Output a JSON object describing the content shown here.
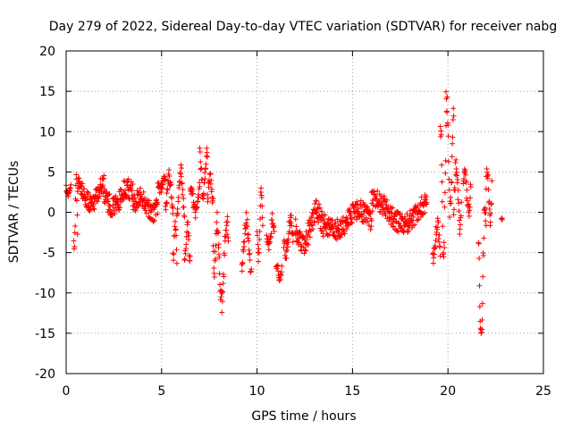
{
  "chart_data": {
    "type": "scatter",
    "title": "Day 279 of 2022, Sidereal Day-to-day VTEC variation (SDTVAR) for receiver nabg",
    "xlabel": "GPS time / hours",
    "ylabel": "SDTVAR / TECUs",
    "xlim": [
      0,
      25
    ],
    "ylim": [
      -20,
      20
    ],
    "xticks": [
      0,
      5,
      10,
      15,
      20,
      25
    ],
    "yticks": [
      -20,
      -15,
      -10,
      -5,
      0,
      5,
      10,
      15,
      20
    ],
    "xtick_labels": [
      "0",
      "5",
      "10",
      "15",
      "20",
      "25"
    ],
    "ytick_labels": [
      "-20",
      "-15",
      "-10",
      "-5",
      "0",
      "5",
      "10",
      "15",
      "20"
    ],
    "grid": true,
    "marker": "+",
    "color": "#ff0000",
    "series": [
      {
        "name": "SDTVAR",
        "segments": [
          {
            "t0": 0.0,
            "t1": 0.25,
            "base": 2.5,
            "amp": 0.6,
            "noise": 0.5
          },
          {
            "t0": 0.4,
            "t1": 0.6,
            "base": 0.0,
            "amp": 4.5,
            "noise": 1.0
          },
          {
            "t0": 0.6,
            "t1": 2.0,
            "base": 2.3,
            "amp": 1.2,
            "noise": 1.2
          },
          {
            "t0": 2.0,
            "t1": 3.5,
            "base": 1.8,
            "amp": 1.2,
            "noise": 1.3
          },
          {
            "t0": 3.5,
            "t1": 4.8,
            "base": 1.0,
            "amp": 1.0,
            "noise": 1.2
          },
          {
            "t0": 4.8,
            "t1": 5.2,
            "base": 3.5,
            "amp": 0.6,
            "noise": 0.6
          },
          {
            "t0": 5.2,
            "t1": 5.6,
            "base": 2.5,
            "amp": 2.0,
            "noise": 1.0
          },
          {
            "t0": 5.6,
            "t1": 5.8,
            "base": -3.5,
            "amp": 2.5,
            "noise": 1.0
          },
          {
            "t0": 5.8,
            "t1": 6.2,
            "base": 2.5,
            "amp": 2.5,
            "noise": 1.0
          },
          {
            "t0": 6.2,
            "t1": 6.5,
            "base": -4.0,
            "amp": 2.0,
            "noise": 1.0
          },
          {
            "t0": 6.5,
            "t1": 7.0,
            "base": 1.5,
            "amp": 1.5,
            "noise": 0.8
          },
          {
            "t0": 7.0,
            "t1": 7.4,
            "base": 5.0,
            "amp": 2.5,
            "noise": 1.0
          },
          {
            "t0": 7.4,
            "t1": 7.7,
            "base": 3.0,
            "amp": 1.5,
            "noise": 0.8
          },
          {
            "t0": 7.7,
            "t1": 8.0,
            "base": -4.0,
            "amp": 3.0,
            "noise": 1.2
          },
          {
            "t0": 8.0,
            "t1": 8.5,
            "base": -6.0,
            "amp": 5.0,
            "noise": 1.5
          },
          {
            "t0": 9.2,
            "t1": 9.7,
            "base": -4.0,
            "amp": 3.0,
            "noise": 1.0
          },
          {
            "t0": 10.0,
            "t1": 10.3,
            "base": -1.5,
            "amp": 4.0,
            "noise": 1.0
          },
          {
            "t0": 10.5,
            "t1": 10.9,
            "base": -2.5,
            "amp": 1.5,
            "noise": 1.0
          },
          {
            "t0": 11.0,
            "t1": 11.3,
            "base": -7.5,
            "amp": 0.8,
            "noise": 0.5
          },
          {
            "t0": 11.4,
            "t1": 11.9,
            "base": -3.0,
            "amp": 2.0,
            "noise": 1.0
          },
          {
            "t0": 12.0,
            "t1": 13.5,
            "base": -2.0,
            "amp": 2.0,
            "noise": 1.5
          },
          {
            "t0": 13.5,
            "t1": 16.0,
            "base": -1.0,
            "amp": 1.2,
            "noise": 1.3
          },
          {
            "t0": 16.0,
            "t1": 18.9,
            "base": 0.0,
            "amp": 1.5,
            "noise": 1.3
          },
          {
            "t0": 19.2,
            "t1": 19.6,
            "base": -3.5,
            "amp": 2.0,
            "noise": 1.0
          },
          {
            "t0": 19.6,
            "t1": 19.9,
            "base": 2.0,
            "amp": 8.0,
            "noise": 1.5
          },
          {
            "t0": 19.9,
            "t1": 20.3,
            "base": 7.0,
            "amp": 7.0,
            "noise": 2.0
          },
          {
            "t0": 20.3,
            "t1": 20.7,
            "base": 2.0,
            "amp": 4.0,
            "noise": 1.5
          },
          {
            "t0": 20.8,
            "t1": 21.2,
            "base": 2.5,
            "amp": 2.5,
            "noise": 1.0
          },
          {
            "t0": 21.6,
            "t1": 22.0,
            "base": -7.0,
            "amp": 8.0,
            "noise": 1.5
          },
          {
            "t0": 22.0,
            "t1": 22.3,
            "base": 2.0,
            "amp": 3.5,
            "noise": 1.0
          },
          {
            "t0": 22.8,
            "t1": 22.85,
            "base": -0.8,
            "amp": 0.1,
            "noise": 0.1
          }
        ]
      }
    ]
  }
}
